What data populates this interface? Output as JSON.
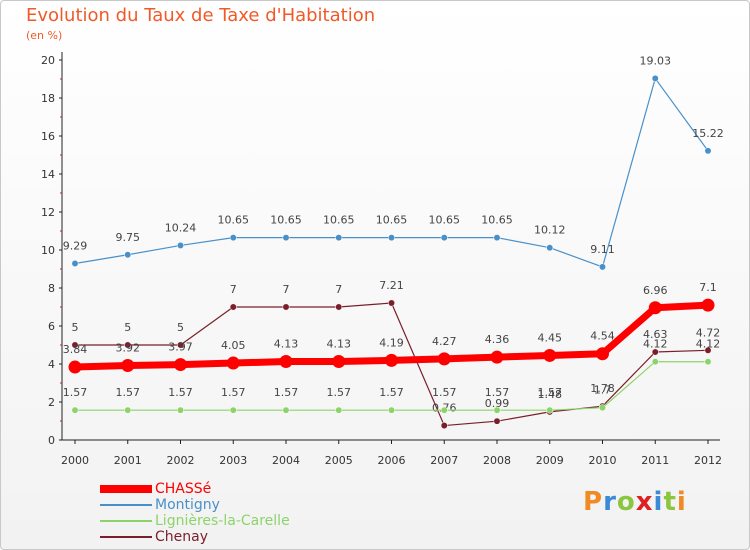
{
  "header": {
    "title": "Evolution du Taux de Taxe d'Habitation",
    "subtitle": "(en %)"
  },
  "brand": {
    "text": "Proxiti",
    "letter_colors": [
      "#f08a24",
      "#3a8ad8",
      "#8cc63f",
      "#e02020",
      "#3a8ad8",
      "#8cc63f",
      "#f08a24"
    ]
  },
  "chart_data": {
    "type": "line",
    "title": "Evolution du Taux de Taxe d'Habitation",
    "subtitle": "(en %)",
    "xlabel": "",
    "ylabel": "",
    "x": [
      "2000",
      "2001",
      "2002",
      "2003",
      "2004",
      "2005",
      "2006",
      "2007",
      "2008",
      "2009",
      "2010",
      "2011",
      "2012"
    ],
    "ylim": [
      0,
      20
    ],
    "yticks": [
      0,
      2,
      4,
      6,
      8,
      10,
      12,
      14,
      16,
      18,
      20
    ],
    "grid": false,
    "legend_position": "bottom-left",
    "series": [
      {
        "name": "Montigny",
        "color": "#4a90c8",
        "values": [
          9.29,
          9.75,
          10.24,
          10.65,
          10.65,
          10.65,
          10.65,
          10.65,
          10.65,
          10.12,
          9.11,
          19.03,
          15.22
        ],
        "labels": [
          "9.29",
          "9.75",
          "10.24",
          "10.65",
          "10.65",
          "10.65",
          "10.65",
          "10.65",
          "10.65",
          "10.12",
          "9.11",
          "19.03",
          "15.22"
        ]
      },
      {
        "name": "Chenay",
        "color": "#7a1f2a",
        "values": [
          5,
          5,
          5,
          7,
          7,
          7,
          7.21,
          0.76,
          0.99,
          1.48,
          1.78,
          4.63,
          4.72
        ],
        "labels": [
          "5",
          "5",
          "5",
          "7",
          "7",
          "7",
          "7.21",
          "0.76",
          "0.99",
          "1.48",
          "1.78",
          "4.63",
          "4.72"
        ]
      },
      {
        "name": "Lignières-la-Carelle",
        "color": "#8cd46a",
        "values": [
          1.57,
          1.57,
          1.57,
          1.57,
          1.57,
          1.57,
          1.57,
          1.57,
          1.57,
          1.57,
          1.7,
          4.12,
          4.12
        ],
        "labels": [
          "1.57",
          "1.57",
          "1.57",
          "1.57",
          "1.57",
          "1.57",
          "1.57",
          "1.57",
          "1.57",
          "1.57",
          "1.7",
          "4.12",
          "4.12"
        ]
      },
      {
        "name": "CHASSé",
        "color": "#ff0000",
        "values": [
          3.84,
          3.92,
          3.97,
          4.05,
          4.13,
          4.13,
          4.19,
          4.27,
          4.36,
          4.45,
          4.54,
          6.96,
          7.1
        ],
        "labels": [
          "3.84",
          "3.92",
          "3.97",
          "4.05",
          "4.13",
          "4.13",
          "4.19",
          "4.27",
          "4.36",
          "4.45",
          "4.54",
          "6.96",
          "7.1"
        ]
      }
    ],
    "legend": [
      {
        "name": "CHASSé",
        "color": "#ff0000"
      },
      {
        "name": "Montigny",
        "color": "#4a90c8"
      },
      {
        "name": "Lignières-la-Carelle",
        "color": "#8cd46a"
      },
      {
        "name": "Chenay",
        "color": "#7a1f2a"
      }
    ]
  }
}
